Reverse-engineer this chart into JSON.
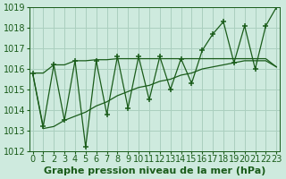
{
  "xlabel": "Graphe pression niveau de la mer (hPa)",
  "hours": [
    0,
    1,
    2,
    3,
    4,
    5,
    6,
    7,
    8,
    9,
    10,
    11,
    12,
    13,
    14,
    15,
    16,
    17,
    18,
    19,
    20,
    21,
    22,
    23
  ],
  "pressure": [
    1015.8,
    1013.2,
    1016.2,
    1013.5,
    1016.4,
    1012.2,
    1016.4,
    1013.8,
    1016.6,
    1014.1,
    1016.6,
    1014.5,
    1016.6,
    1015.0,
    1016.5,
    1015.3,
    1016.9,
    1017.7,
    1018.3,
    1016.3,
    1018.1,
    1016.0,
    1018.1,
    1019.0
  ],
  "upper_env": [
    1015.8,
    1015.8,
    1016.2,
    1016.2,
    1016.4,
    1016.4,
    1016.45,
    1016.45,
    1016.5,
    1016.5,
    1016.5,
    1016.5,
    1016.5,
    1016.5,
    1016.5,
    1016.5,
    1016.5,
    1016.5,
    1016.5,
    1016.5,
    1016.5,
    1016.5,
    1016.5,
    1016.1
  ],
  "lower_env": [
    1015.8,
    1013.1,
    1013.2,
    1013.5,
    1013.7,
    1013.9,
    1014.2,
    1014.4,
    1014.7,
    1014.9,
    1015.1,
    1015.2,
    1015.4,
    1015.5,
    1015.7,
    1015.8,
    1016.0,
    1016.1,
    1016.2,
    1016.3,
    1016.4,
    1016.4,
    1016.4,
    1016.1
  ],
  "bg_color": "#ceeade",
  "grid_color": "#aacfbf",
  "line_color": "#1a5c1a",
  "ylim": [
    1012,
    1019
  ],
  "yticks": [
    1012,
    1013,
    1014,
    1015,
    1016,
    1017,
    1018,
    1019
  ],
  "xlim": [
    -0.3,
    23.3
  ],
  "label_fontsize": 8,
  "tick_fontsize": 7
}
